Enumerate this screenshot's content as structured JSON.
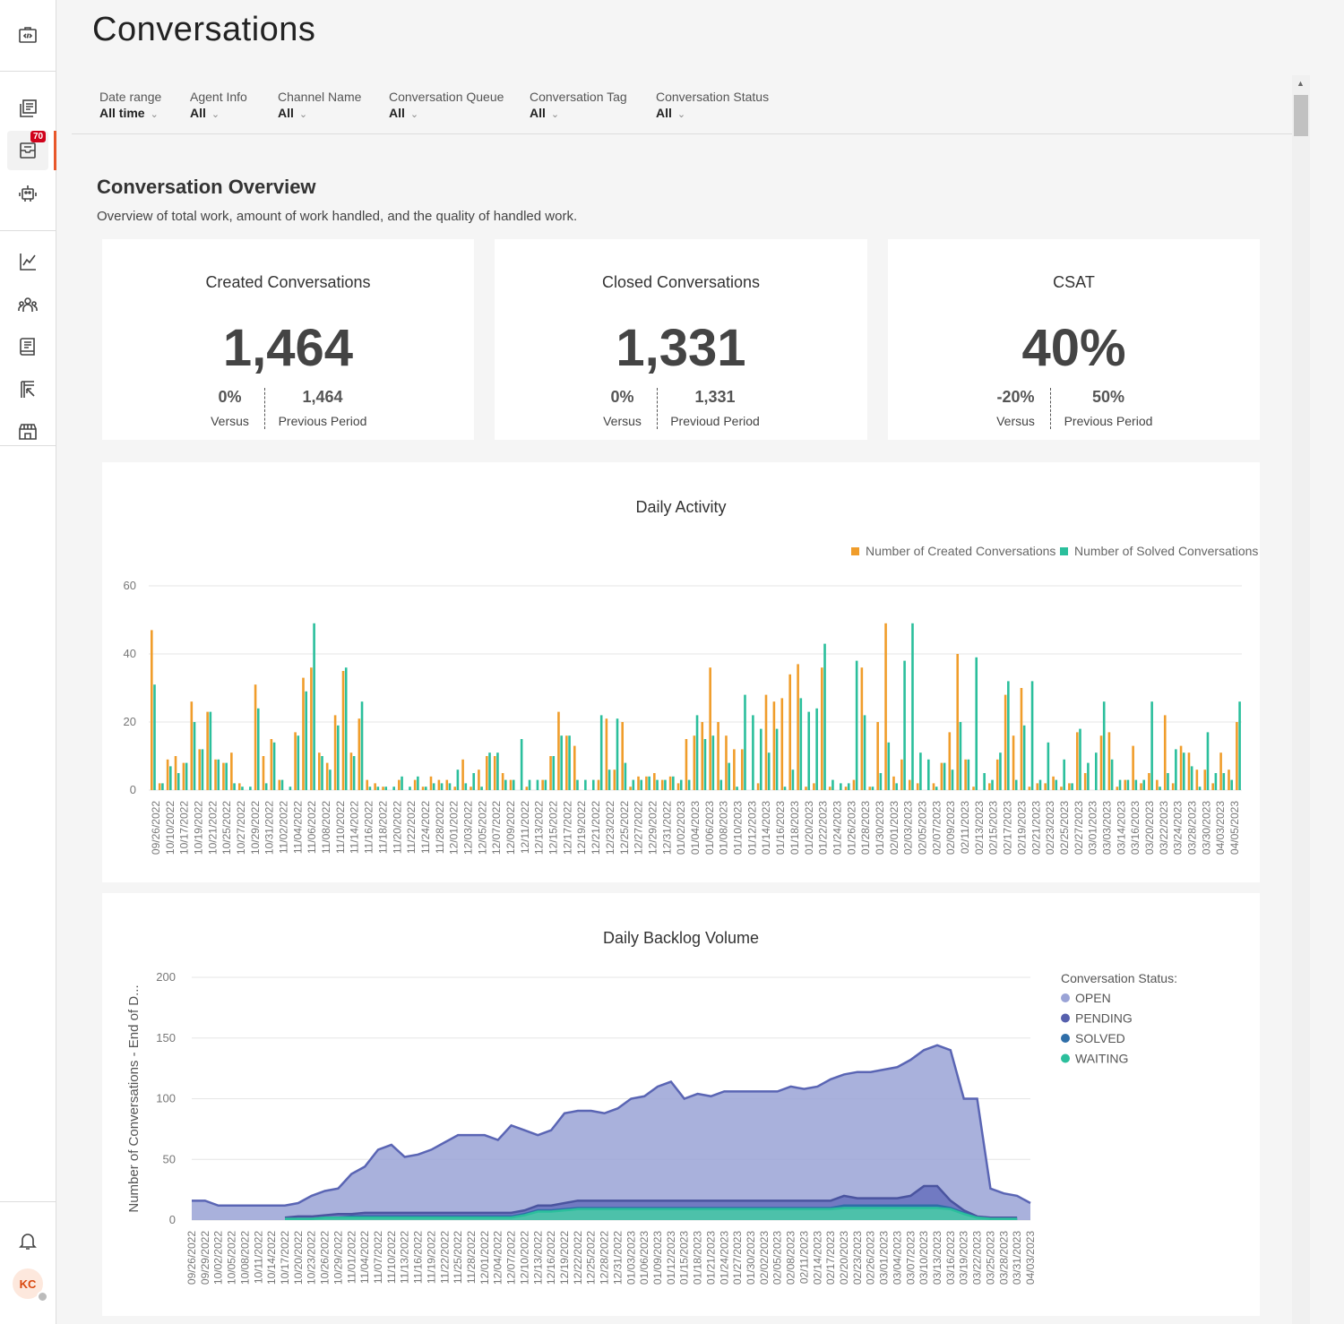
{
  "page": {
    "title": "Conversations"
  },
  "sidebar": {
    "badge_count": "70",
    "avatar_initials": "KC",
    "icons": [
      "developer-icon",
      "knowledge-icon",
      "conversations-icon",
      "bot-icon",
      "analytics-icon",
      "team-icon",
      "book-icon",
      "report-icon",
      "store-icon",
      "bell-icon"
    ]
  },
  "filters": [
    {
      "label": "Date range",
      "value": "All time"
    },
    {
      "label": "Agent Info",
      "value": "All"
    },
    {
      "label": "Channel Name",
      "value": "All"
    },
    {
      "label": "Conversation Queue",
      "value": "All"
    },
    {
      "label": "Conversation Tag",
      "value": "All"
    },
    {
      "label": "Conversation Status",
      "value": "All"
    }
  ],
  "overview": {
    "title": "Conversation Overview",
    "subtitle": "Overview of total work, amount of work handled, and the quality of handled work."
  },
  "kpis": [
    {
      "title": "Created Conversations",
      "value": "1,464",
      "versus_value": "0%",
      "versus_label": "Versus",
      "prev_value": "1,464",
      "prev_label": "Previous Period"
    },
    {
      "title": "Closed Conversations",
      "value": "1,331",
      "versus_value": "0%",
      "versus_label": "Versus",
      "prev_value": "1,331",
      "prev_label": "Previoud Period"
    },
    {
      "title": "CSAT",
      "value": "40%",
      "versus_value": "-20%",
      "versus_label": "Versus",
      "prev_value": "50%",
      "prev_label": "Previous Period"
    }
  ],
  "colors": {
    "created": "#f09d2b",
    "solved": "#2bbf9c",
    "open": "#9aa3d6",
    "pending": "#5660ad",
    "solved_status": "#2f6ea8",
    "waiting": "#2bbf9c"
  },
  "chart_data": [
    {
      "type": "bar",
      "title": "Daily Activity",
      "ylim": [
        0,
        60
      ],
      "yticks": [
        0,
        20,
        40,
        60
      ],
      "legend": [
        "Number of Created Conversations",
        "Number of Solved Conversations"
      ],
      "legend_position": "top-right",
      "grid": true,
      "tick_labels": [
        "09/26/2022",
        "10/10/2022",
        "10/17/2022",
        "10/19/2022",
        "10/21/2022",
        "10/25/2022",
        "10/27/2022",
        "10/29/2022",
        "10/31/2022",
        "11/02/2022",
        "11/04/2022",
        "11/06/2022",
        "11/08/2022",
        "11/10/2022",
        "11/14/2022",
        "11/16/2022",
        "11/18/2022",
        "11/20/2022",
        "11/22/2022",
        "11/24/2022",
        "11/28/2022",
        "12/01/2022",
        "12/03/2022",
        "12/05/2022",
        "12/07/2022",
        "12/09/2022",
        "12/11/2022",
        "12/13/2022",
        "12/15/2022",
        "12/17/2022",
        "12/19/2022",
        "12/21/2022",
        "12/23/2022",
        "12/25/2022",
        "12/27/2022",
        "12/29/2022",
        "12/31/2022",
        "01/02/2023",
        "01/04/2023",
        "01/06/2023",
        "01/08/2023",
        "01/10/2023",
        "01/12/2023",
        "01/14/2023",
        "01/16/2023",
        "01/18/2023",
        "01/20/2023",
        "01/22/2023",
        "01/24/2023",
        "01/26/2023",
        "01/28/2023",
        "01/30/2023",
        "02/01/2023",
        "02/03/2023",
        "02/05/2023",
        "02/07/2023",
        "02/09/2023",
        "02/11/2023",
        "02/13/2023",
        "02/15/2023",
        "02/17/2023",
        "02/19/2023",
        "02/21/2023",
        "02/23/2023",
        "02/25/2023",
        "02/27/2023",
        "03/01/2023",
        "03/03/2023",
        "03/14/2023",
        "03/16/2023",
        "03/20/2023",
        "03/22/2023",
        "03/24/2023",
        "03/28/2023",
        "03/30/2023",
        "04/03/2023",
        "04/05/2023"
      ],
      "series": [
        {
          "name": "Number of Created Conversations",
          "values": [
            47,
            2,
            9,
            10,
            8,
            26,
            12,
            23,
            9,
            8,
            11,
            2,
            0,
            31,
            10,
            15,
            3,
            0,
            17,
            33,
            36,
            11,
            8,
            22,
            35,
            11,
            21,
            3,
            2,
            1,
            0,
            3,
            0,
            3,
            1,
            4,
            3,
            3,
            1,
            9,
            1,
            6,
            10,
            10,
            5,
            3,
            0,
            1,
            0,
            3,
            10,
            23,
            16,
            13,
            0,
            0,
            3,
            21,
            6,
            20,
            1,
            4,
            4,
            5,
            3,
            4,
            2,
            15,
            16,
            20,
            36,
            20,
            16,
            12,
            12,
            0,
            2,
            28,
            26,
            27,
            34,
            37,
            1,
            2,
            36,
            1,
            0,
            1,
            3,
            36,
            1,
            20,
            49,
            4,
            9,
            3,
            2,
            0,
            2,
            8,
            17,
            40,
            9,
            1,
            0,
            2,
            9,
            28,
            16,
            30,
            1,
            2,
            2,
            4,
            1,
            2,
            17,
            5,
            0,
            16,
            17,
            1,
            3,
            13,
            2,
            5,
            3,
            22,
            2,
            13,
            11,
            6,
            6,
            2,
            11,
            6,
            20
          ]
        },
        {
          "name": "Number of Solved Conversations",
          "values": [
            31,
            2,
            7,
            5,
            8,
            20,
            12,
            23,
            9,
            8,
            2,
            1,
            1,
            24,
            2,
            14,
            3,
            1,
            16,
            29,
            49,
            10,
            6,
            19,
            36,
            10,
            26,
            1,
            1,
            1,
            1,
            4,
            1,
            4,
            1,
            2,
            2,
            2,
            6,
            2,
            5,
            1,
            11,
            11,
            3,
            3,
            15,
            3,
            3,
            3,
            10,
            16,
            16,
            3,
            3,
            3,
            22,
            6,
            21,
            8,
            3,
            3,
            4,
            3,
            3,
            4,
            3,
            3,
            22,
            15,
            16,
            3,
            8,
            1,
            28,
            22,
            18,
            11,
            18,
            1,
            6,
            27,
            23,
            24,
            43,
            3,
            2,
            2,
            38,
            22,
            1,
            5,
            14,
            2,
            38,
            49,
            11,
            9,
            1,
            8,
            6,
            20,
            9,
            39,
            5,
            3,
            11,
            32,
            3,
            19,
            32,
            3,
            14,
            3,
            9,
            2,
            18,
            8,
            11,
            26,
            9,
            3,
            3,
            3,
            3,
            26,
            1,
            5,
            12,
            11,
            7,
            1,
            17,
            5,
            5,
            3,
            26
          ]
        }
      ]
    },
    {
      "type": "area",
      "title": "Daily Backlog Volume",
      "ylabel": "Number of Conversations - End of D...",
      "ylim": [
        0,
        200
      ],
      "yticks": [
        0,
        50,
        100,
        150,
        200
      ],
      "legend_title": "Conversation Status:",
      "legend": [
        "OPEN",
        "PENDING",
        "SOLVED",
        "WAITING"
      ],
      "legend_position": "right",
      "grid": true,
      "tick_labels": [
        "09/26/2022",
        "09/29/2022",
        "10/02/2022",
        "10/05/2022",
        "10/08/2022",
        "10/11/2022",
        "10/14/2022",
        "10/17/2022",
        "10/20/2022",
        "10/23/2022",
        "10/26/2022",
        "10/29/2022",
        "11/01/2022",
        "11/04/2022",
        "11/07/2022",
        "11/10/2022",
        "11/13/2022",
        "11/16/2022",
        "11/19/2022",
        "11/22/2022",
        "11/25/2022",
        "11/28/2022",
        "12/01/2022",
        "12/04/2022",
        "12/07/2022",
        "12/10/2022",
        "12/13/2022",
        "12/16/2022",
        "12/19/2022",
        "12/22/2022",
        "12/25/2022",
        "12/28/2022",
        "12/31/2022",
        "01/03/2023",
        "01/06/2023",
        "01/09/2023",
        "01/12/2023",
        "01/15/2023",
        "01/18/2023",
        "01/21/2023",
        "01/24/2023",
        "01/27/2023",
        "01/30/2023",
        "02/02/2023",
        "02/05/2023",
        "02/08/2023",
        "02/11/2023",
        "02/14/2023",
        "02/17/2023",
        "02/20/2023",
        "02/23/2023",
        "02/26/2023",
        "03/01/2023",
        "03/04/2023",
        "03/07/2023",
        "03/10/2023",
        "03/13/2023",
        "03/16/2023",
        "03/19/2023",
        "03/22/2023",
        "03/25/2023",
        "03/28/2023",
        "03/31/2023",
        "04/03/2023"
      ],
      "series": [
        {
          "name": "OPEN",
          "values": [
            16,
            16,
            12,
            12,
            12,
            12,
            12,
            12,
            14,
            20,
            24,
            26,
            38,
            44,
            58,
            62,
            52,
            54,
            58,
            64,
            70,
            70,
            70,
            66,
            78,
            74,
            70,
            74,
            88,
            90,
            90,
            88,
            92,
            100,
            102,
            110,
            114,
            100,
            104,
            102,
            106,
            106,
            106,
            106,
            106,
            110,
            108,
            110,
            116,
            120,
            122,
            122,
            124,
            126,
            132,
            140,
            144,
            140,
            100,
            100,
            26,
            22,
            20,
            14
          ]
        },
        {
          "name": "PENDING",
          "values": [
            0,
            0,
            0,
            0,
            0,
            0,
            0,
            2,
            3,
            3,
            4,
            5,
            5,
            6,
            6,
            6,
            6,
            6,
            6,
            6,
            6,
            6,
            6,
            6,
            6,
            8,
            12,
            12,
            14,
            16,
            16,
            16,
            16,
            16,
            16,
            16,
            16,
            16,
            16,
            16,
            16,
            16,
            16,
            16,
            16,
            16,
            16,
            16,
            16,
            20,
            18,
            18,
            18,
            18,
            20,
            28,
            28,
            16,
            8,
            3,
            2,
            2,
            2,
            2
          ]
        },
        {
          "name": "SOLVED",
          "values": [
            0,
            0,
            0,
            0,
            0,
            0,
            0,
            1,
            1,
            1,
            2,
            2,
            3,
            3,
            3,
            3,
            3,
            3,
            3,
            3,
            3,
            3,
            3,
            3,
            3,
            5,
            8,
            8,
            9,
            10,
            10,
            10,
            10,
            10,
            10,
            10,
            10,
            10,
            10,
            10,
            10,
            10,
            10,
            10,
            10,
            10,
            10,
            10,
            10,
            12,
            12,
            12,
            12,
            12,
            12,
            12,
            12,
            10,
            6,
            2,
            1,
            1,
            1,
            1
          ]
        },
        {
          "name": "WAITING",
          "values": [
            0,
            0,
            0,
            0,
            0,
            0,
            0,
            1,
            1,
            1,
            2,
            2,
            2,
            2,
            2,
            2,
            2,
            2,
            2,
            2,
            2,
            2,
            2,
            2,
            2,
            4,
            7,
            7,
            8,
            9,
            9,
            9,
            9,
            9,
            9,
            9,
            9,
            9,
            9,
            9,
            9,
            9,
            9,
            9,
            9,
            9,
            9,
            9,
            9,
            10,
            10,
            10,
            10,
            10,
            10,
            10,
            10,
            9,
            5,
            2,
            1,
            1,
            1,
            1
          ]
        }
      ]
    }
  ]
}
